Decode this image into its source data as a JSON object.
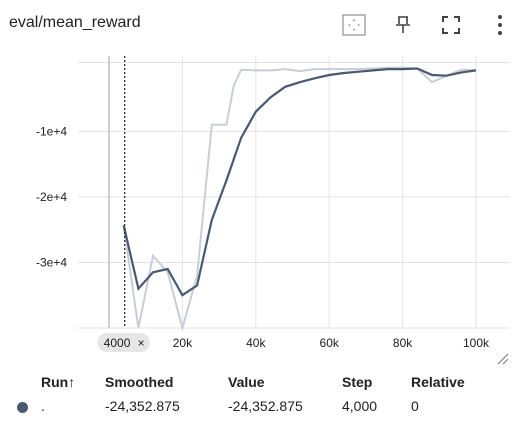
{
  "header": {
    "title": "eval/mean_reward",
    "icons": [
      "fit-domain-icon",
      "pin-icon",
      "fullscreen-icon",
      "more-vert-icon"
    ]
  },
  "colors": {
    "smoothed": "#4a5970",
    "raw": "#c8cdd6",
    "grid": "#e3e3e3",
    "tooltip_bg": "#e6e6e6"
  },
  "chart_data": {
    "type": "line",
    "title": "eval/mean_reward",
    "xlim": [
      0,
      102000
    ],
    "ylim": [
      -40000,
      1500
    ],
    "x_ticks": [
      20000,
      40000,
      60000,
      80000,
      100000
    ],
    "x_tick_labels": [
      "20k",
      "40k",
      "60k",
      "80k",
      "100k"
    ],
    "y_ticks": [
      -10000,
      -20000,
      -30000
    ],
    "y_tick_labels": [
      "-1e+4",
      "-2e+4",
      "-3e+4"
    ],
    "grid": true,
    "hover_x": 4000,
    "hover_label": "4000",
    "series": [
      {
        "role": "raw",
        "x": [
          4000,
          8000,
          12000,
          16000,
          20000,
          24000,
          28000,
          30000,
          32000,
          34000,
          36000,
          40000,
          44000,
          48000,
          52000,
          56000,
          60000,
          64000,
          68000,
          72000,
          76000,
          80000,
          84000,
          88000,
          92000,
          96000,
          100000
        ],
        "values": [
          -24352.875,
          -40000,
          -29000,
          -31500,
          -40000,
          -32000,
          -9000,
          -9000,
          -9000,
          -3000,
          -600,
          -700,
          -700,
          -500,
          -800,
          -500,
          -500,
          -500,
          -500,
          -400,
          -300,
          -300,
          -400,
          -2500,
          -1500,
          -600,
          -700
        ]
      },
      {
        "role": "smoothed",
        "x": [
          4000,
          8000,
          12000,
          16000,
          20000,
          24000,
          28000,
          32000,
          36000,
          40000,
          44000,
          48000,
          52000,
          56000,
          60000,
          64000,
          68000,
          72000,
          76000,
          80000,
          84000,
          88000,
          92000,
          96000,
          100000
        ],
        "values": [
          -24352.875,
          -34000,
          -31500,
          -31000,
          -35000,
          -33500,
          -23500,
          -17500,
          -11000,
          -7000,
          -4800,
          -3200,
          -2500,
          -1900,
          -1400,
          -1100,
          -900,
          -700,
          -500,
          -500,
          -400,
          -1400,
          -1500,
          -1000,
          -700
        ]
      }
    ]
  },
  "table": {
    "columns": [
      "Run",
      "Smoothed",
      "Value",
      "Step",
      "Relative"
    ],
    "sort_indicator": "↑",
    "row": {
      "run": ".",
      "smoothed": "-24,352.875",
      "value": "-24,352.875",
      "step": "4,000",
      "relative": "0"
    }
  }
}
